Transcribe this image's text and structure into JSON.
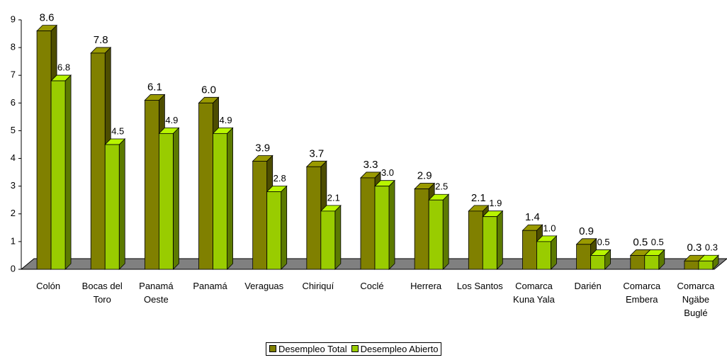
{
  "chart_data": {
    "type": "bar3d",
    "categories": [
      "Colón",
      "Bocas del Toro",
      "Panamá Oeste",
      "Panamá",
      "Veraguas",
      "Chiriquí",
      "Coclé",
      "Herrera",
      "Los Santos",
      "Comarca Kuna Yala",
      "Darién",
      "Comarca Embera",
      "Comarca Ngäbe Buglé"
    ],
    "series": [
      {
        "name": "Desempleo Total",
        "color": "#808000",
        "values": [
          8.6,
          7.8,
          6.1,
          6.0,
          3.9,
          3.7,
          3.3,
          2.9,
          2.1,
          1.4,
          0.9,
          0.5,
          0.3
        ],
        "value_labels": [
          "8.6",
          "7.8",
          "6.1",
          "6.0",
          "3.9",
          "3.7",
          "3.3",
          "2.9",
          "2.1",
          "1.4",
          "0.9",
          "0.5",
          "0.3"
        ]
      },
      {
        "name": "Desempleo Abierto",
        "color": "#99cc00",
        "values": [
          6.8,
          4.5,
          4.9,
          4.9,
          2.8,
          2.1,
          3.0,
          2.5,
          1.9,
          1.0,
          0.5,
          0.5,
          0.3
        ],
        "value_labels": [
          "6.8",
          "4.5",
          "4.9",
          "4.9",
          "2.8",
          "2.1",
          "3.0",
          "2.5",
          "1.9",
          "1.0",
          "0.5",
          "0.5",
          "0.3"
        ]
      }
    ],
    "ylim": [
      0,
      9
    ],
    "yticks": [
      0,
      1,
      2,
      3,
      4,
      5,
      6,
      7,
      8,
      9
    ],
    "legend": "bottom"
  }
}
